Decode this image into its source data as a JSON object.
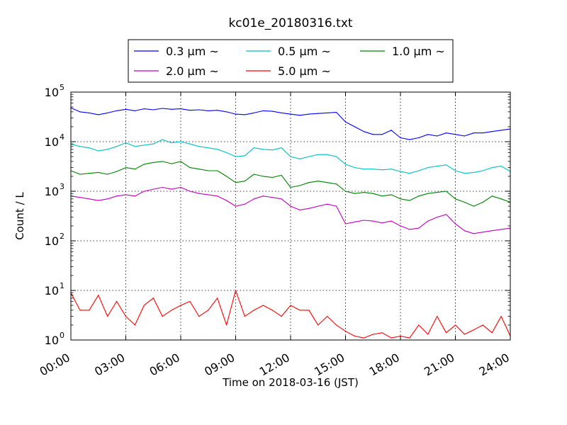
{
  "chart_data": {
    "type": "line",
    "title": "kc01e_20180316.txt",
    "xlabel": "Time on 2018-03-16 (JST)",
    "ylabel": "Count / L",
    "yscale": "log",
    "ylim": [
      1,
      100000
    ],
    "xlim": [
      "2018-03-16T00:00",
      "2018-03-17T00:00"
    ],
    "grid": true,
    "legend_position": "top-center",
    "x_tick_labels": [
      "00:00",
      "03:00",
      "06:00",
      "09:00",
      "12:00",
      "15:00",
      "18:00",
      "21:00",
      "24:00"
    ],
    "y_tick_labels": [
      {
        "base": "10",
        "exp": "0"
      },
      {
        "base": "10",
        "exp": "1"
      },
      {
        "base": "10",
        "exp": "2"
      },
      {
        "base": "10",
        "exp": "3"
      },
      {
        "base": "10",
        "exp": "4"
      },
      {
        "base": "10",
        "exp": "5"
      }
    ],
    "x": [
      "00:00",
      "00:30",
      "01:00",
      "01:30",
      "02:00",
      "02:30",
      "03:00",
      "03:30",
      "04:00",
      "04:30",
      "05:00",
      "05:30",
      "06:00",
      "06:30",
      "07:00",
      "07:30",
      "08:00",
      "08:30",
      "09:00",
      "09:30",
      "10:00",
      "10:30",
      "11:00",
      "11:30",
      "12:00",
      "12:30",
      "13:00",
      "13:30",
      "14:00",
      "14:30",
      "15:00",
      "15:30",
      "16:00",
      "16:30",
      "17:00",
      "17:30",
      "18:00",
      "18:30",
      "19:00",
      "19:30",
      "20:00",
      "20:30",
      "21:00",
      "21:30",
      "22:00",
      "22:30",
      "23:00",
      "23:30",
      "24:00"
    ],
    "series": [
      {
        "name": "0.3 μm ~",
        "color": "#0000ff",
        "values": [
          48000,
          40000,
          38000,
          35000,
          38000,
          42000,
          45000,
          42000,
          46000,
          44000,
          47000,
          45000,
          46000,
          43000,
          44000,
          42000,
          43000,
          40000,
          36000,
          35000,
          38000,
          42000,
          41000,
          38000,
          36000,
          34000,
          36000,
          37000,
          38000,
          39000,
          25000,
          20000,
          16000,
          14000,
          14000,
          17000,
          12000,
          11000,
          12000,
          14000,
          13000,
          15000,
          14000,
          13000,
          15000,
          15000,
          16000,
          17000,
          18000
        ]
      },
      {
        "name": "0.5 μm ~",
        "color": "#00bfbf",
        "values": [
          9000,
          8000,
          7500,
          6500,
          7000,
          8000,
          9500,
          8000,
          8500,
          9000,
          11000,
          9500,
          10000,
          9000,
          8000,
          7500,
          7000,
          6000,
          5000,
          5200,
          7500,
          7000,
          6800,
          7500,
          5000,
          4500,
          5000,
          5500,
          5500,
          5000,
          3500,
          3000,
          2800,
          2800,
          2700,
          2800,
          2500,
          2300,
          2600,
          3000,
          3200,
          3400,
          2600,
          2300,
          2400,
          2600,
          3000,
          3200,
          2500
        ]
      },
      {
        "name": "1.0 μm ~",
        "color": "#008000",
        "values": [
          2600,
          2200,
          2300,
          2400,
          2200,
          2500,
          3000,
          2800,
          3500,
          3800,
          4000,
          3600,
          4000,
          3000,
          2800,
          2600,
          2600,
          2000,
          1500,
          1600,
          2200,
          2000,
          1900,
          2100,
          1200,
          1300,
          1500,
          1600,
          1500,
          1400,
          1000,
          900,
          950,
          900,
          800,
          850,
          700,
          650,
          800,
          900,
          950,
          1000,
          700,
          600,
          500,
          600,
          800,
          700,
          600
        ]
      },
      {
        "name": "2.0 μm ~",
        "color": "#bf00bf",
        "values": [
          800,
          750,
          700,
          650,
          700,
          800,
          850,
          800,
          1000,
          1100,
          1200,
          1100,
          1200,
          1000,
          900,
          850,
          800,
          650,
          500,
          550,
          700,
          800,
          750,
          700,
          500,
          420,
          450,
          500,
          550,
          500,
          220,
          240,
          260,
          250,
          230,
          250,
          200,
          170,
          180,
          250,
          300,
          340,
          220,
          160,
          140,
          150,
          160,
          170,
          180
        ]
      },
      {
        "name": "5.0 μm ~",
        "color": "#ff0000",
        "values": [
          9,
          4,
          4,
          8,
          3,
          6,
          3,
          2,
          5,
          7,
          3,
          4,
          5,
          6,
          3,
          4,
          7,
          2,
          10,
          3,
          4,
          5,
          4,
          3,
          5,
          4,
          4,
          2,
          3,
          2,
          1.5,
          1.2,
          1.1,
          1.3,
          1.4,
          1.1,
          1.2,
          1.1,
          2,
          1.3,
          3,
          1.4,
          2,
          1.3,
          1.6,
          2,
          1.4,
          3,
          1.2
        ]
      }
    ]
  }
}
